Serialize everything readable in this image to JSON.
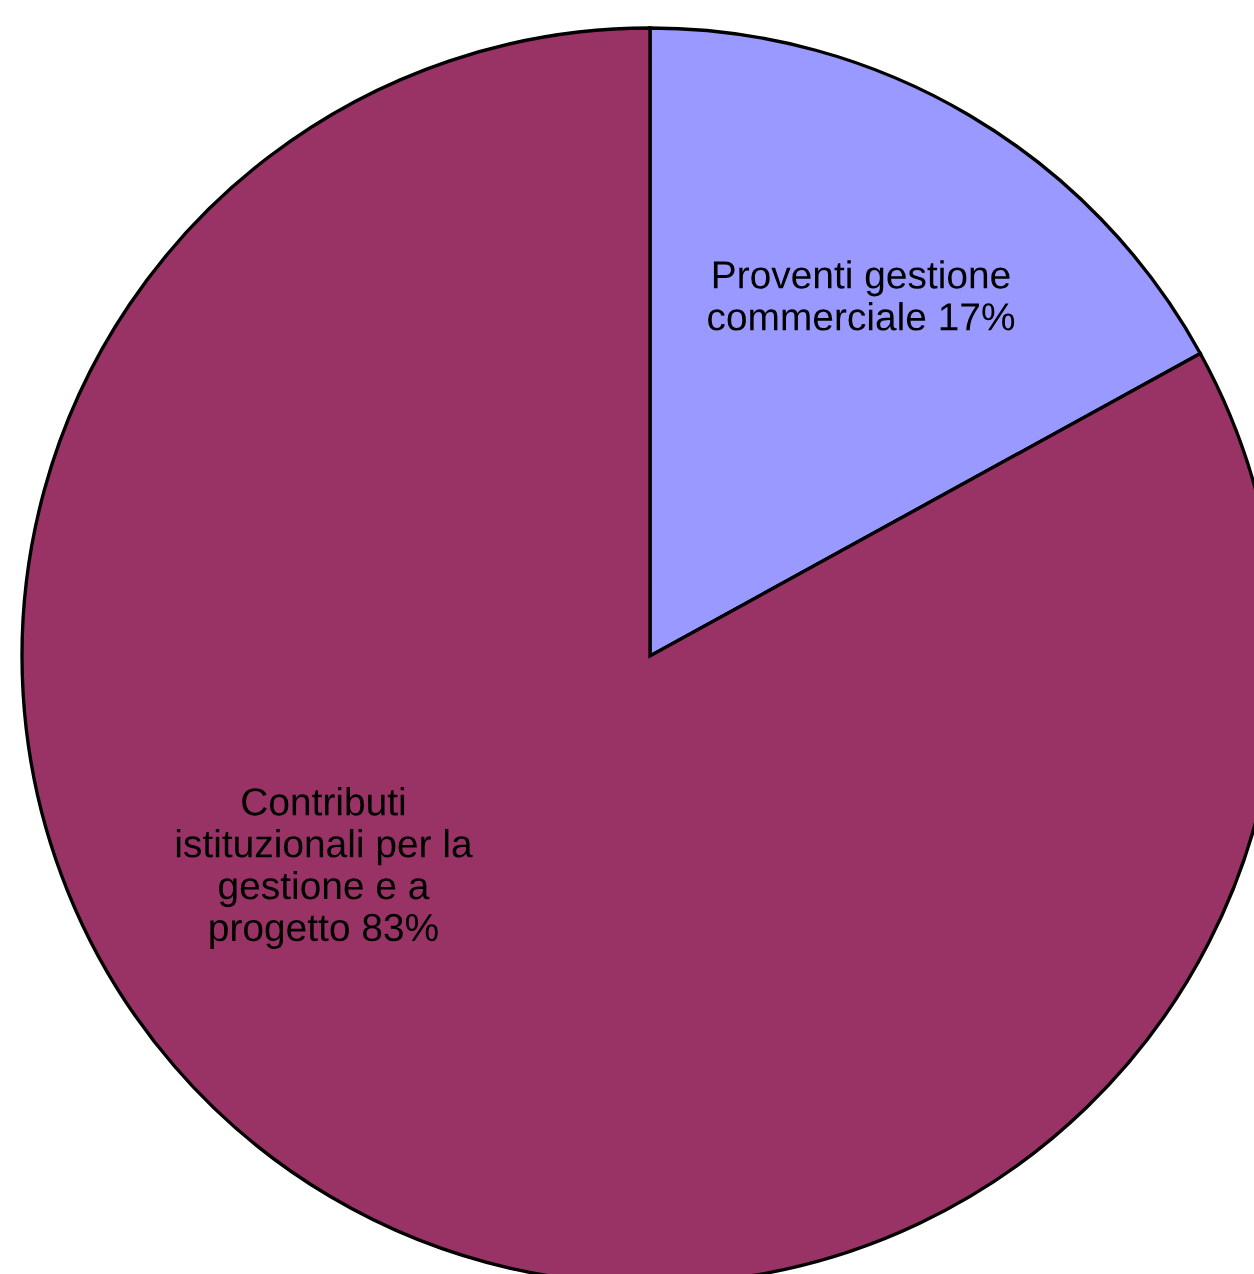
{
  "chart_data": {
    "type": "pie",
    "categories": [
      "Proventi gestione\ncommerciale 17%",
      "Contributi\nistituzionali per la\ngestione e a\nprogetto 83%"
    ],
    "values": [
      17,
      83
    ],
    "colors": [
      "#9999ff",
      "#993366"
    ]
  }
}
